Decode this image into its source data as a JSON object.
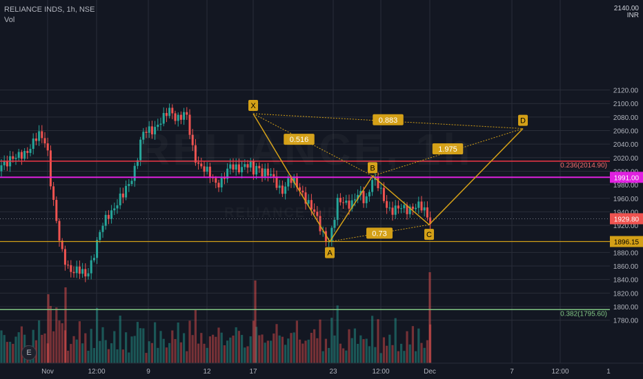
{
  "header": {
    "symbol": "RELIANCE INDS, 1h, NSE",
    "volume_label": "Vol"
  },
  "watermark": {
    "main": "RELIANCE, 1h",
    "sub": "RELIANCE INDS"
  },
  "currency": {
    "top": "2140.00",
    "unit": "INR"
  },
  "corner_button": "E",
  "colors": {
    "background": "#131722",
    "up": "#26a69a",
    "down": "#ef5350",
    "pattern": "#d4a017",
    "fib_red": "#f23645",
    "fib_green": "#81c784",
    "magenta_line": "#e020e0"
  },
  "chart_data": {
    "type": "candlestick",
    "title": "RELIANCE INDS, 1h, NSE",
    "ylim": [
      1770,
      2140
    ],
    "price_axis": [
      "2120.00",
      "2100.00",
      "2080.00",
      "2060.00",
      "2040.00",
      "2020.00",
      "2000.00",
      "1980.00",
      "1960.00",
      "1940.00",
      "1920.00",
      "1880.00",
      "1860.00",
      "1840.00",
      "1820.00",
      "1800.00",
      "1780.00"
    ],
    "time_axis": [
      "Nov",
      "12:00",
      "9",
      "12",
      "17",
      "23",
      "12:00",
      "Dec",
      "7",
      "12:00",
      "1"
    ],
    "current_price": {
      "value": 1929.8,
      "label": "1929.80"
    },
    "horizontal_lines": [
      {
        "value": 2014.9,
        "label": "0.236(2014.90)"
      },
      {
        "value": 1991.0,
        "label": "1991.00"
      },
      {
        "value": 1896.15,
        "label": "1896.15"
      },
      {
        "value": 1795.6,
        "label": "0.382(1795.60)"
      }
    ],
    "xabcd": {
      "points": [
        {
          "name": "X",
          "price": 2085
        },
        {
          "name": "A",
          "price": 1896
        },
        {
          "name": "B",
          "price": 1993
        },
        {
          "name": "C",
          "price": 1921
        },
        {
          "name": "D",
          "price": 2063
        }
      ],
      "ratios": [
        "0.516",
        "0.883",
        "1.975",
        "0.73"
      ]
    }
  }
}
